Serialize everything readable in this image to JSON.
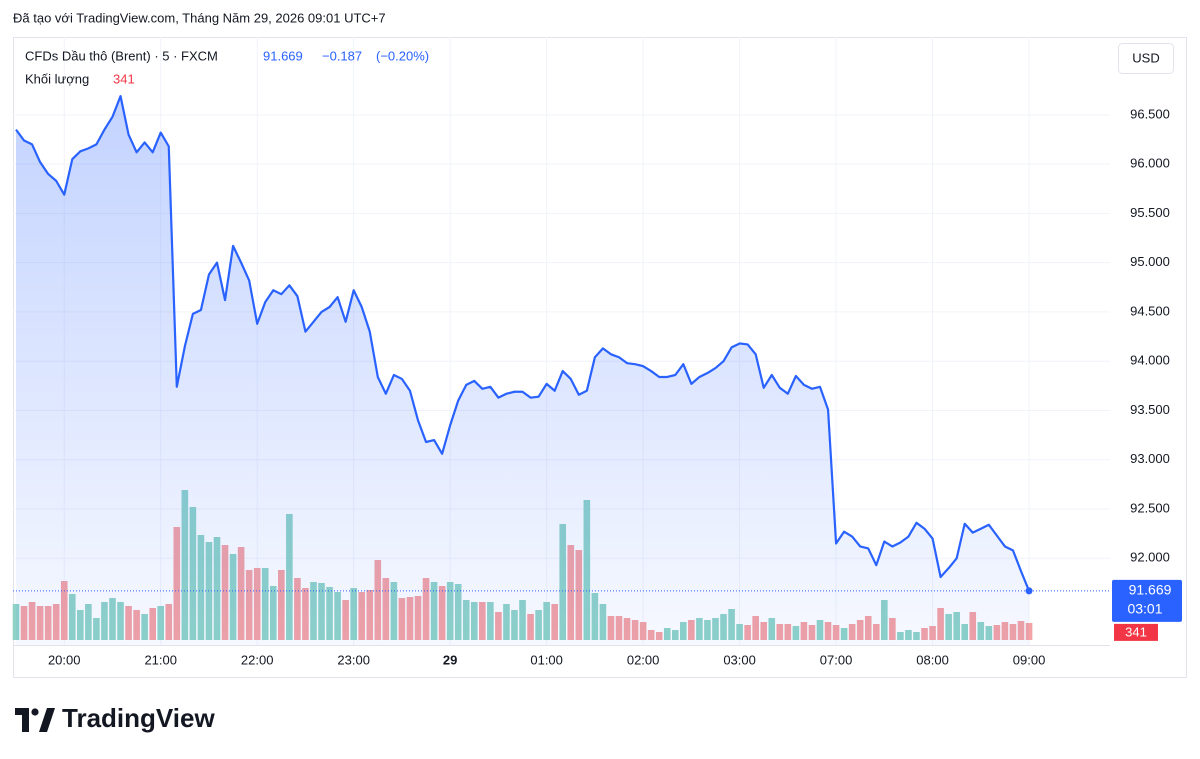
{
  "chart_data": {
    "type": "line",
    "credit": "Đã tạo với TradingView.com, Tháng Năm 29, 2026 09:01 UTC+7",
    "symbol": "CFDs Dầu thô (Brent) · 5 · FXCM",
    "change": "−0.187",
    "change_pct": "(−0.20%)",
    "volume_label": "Khối lượng",
    "currency": "USD",
    "countdown": "03:01",
    "brand": "TradingView",
    "color": "#2962ff",
    "grid": true,
    "ylim": [
      91.12,
      97.29
    ],
    "yticks": [
      {
        "value": 92,
        "label": "92.000"
      },
      {
        "value": 92.5,
        "label": "92.500"
      },
      {
        "value": 93,
        "label": "93.000"
      },
      {
        "value": 93.5,
        "label": "93.500"
      },
      {
        "value": 94,
        "label": "94.000"
      },
      {
        "value": 94.5,
        "label": "94.500"
      },
      {
        "value": 95,
        "label": "95.000"
      },
      {
        "value": 95.5,
        "label": "95.500"
      },
      {
        "value": 96,
        "label": "96.000"
      },
      {
        "value": 96.5,
        "label": "96.500"
      }
    ],
    "categories": [
      null,
      null,
      null,
      null,
      null,
      null,
      "20:00",
      null,
      null,
      null,
      null,
      null,
      null,
      null,
      null,
      null,
      null,
      null,
      "21:00",
      null,
      null,
      null,
      null,
      null,
      null,
      null,
      null,
      null,
      null,
      null,
      "22:00",
      null,
      null,
      null,
      null,
      null,
      null,
      null,
      null,
      null,
      null,
      null,
      "23:00",
      null,
      null,
      null,
      null,
      null,
      null,
      null,
      null,
      null,
      null,
      null,
      "29",
      null,
      null,
      null,
      null,
      null,
      null,
      null,
      null,
      null,
      null,
      null,
      "01:00",
      null,
      null,
      null,
      null,
      null,
      null,
      null,
      null,
      null,
      null,
      null,
      "02:00",
      null,
      null,
      null,
      null,
      null,
      null,
      null,
      null,
      null,
      null,
      null,
      "03:00",
      null,
      null,
      null,
      null,
      null,
      null,
      null,
      null,
      null,
      null,
      null,
      "07:00",
      null,
      null,
      null,
      null,
      null,
      null,
      null,
      null,
      null,
      null,
      null,
      "08:00",
      null,
      null,
      null,
      null,
      null,
      null,
      null,
      null,
      null,
      null,
      null,
      "09:00"
    ],
    "values": [
      96.35,
      96.24,
      96.2,
      96.02,
      95.9,
      95.83,
      95.69,
      96.05,
      96.13,
      96.16,
      96.2,
      96.35,
      96.48,
      96.69,
      96.3,
      96.12,
      96.22,
      96.12,
      96.32,
      96.18,
      93.74,
      94.15,
      94.48,
      94.52,
      94.88,
      95.0,
      94.62,
      95.17,
      95.0,
      94.82,
      94.38,
      94.6,
      94.72,
      94.68,
      94.77,
      94.66,
      94.3,
      94.4,
      94.5,
      94.55,
      94.65,
      94.4,
      94.72,
      94.55,
      94.3,
      93.84,
      93.67,
      93.86,
      93.82,
      93.7,
      93.4,
      93.18,
      93.2,
      93.06,
      93.35,
      93.6,
      93.76,
      93.8,
      93.72,
      93.74,
      93.63,
      93.67,
      93.69,
      93.69,
      93.63,
      93.64,
      93.77,
      93.7,
      93.9,
      93.82,
      93.66,
      93.7,
      94.04,
      94.13,
      94.07,
      94.04,
      93.98,
      93.97,
      93.95,
      93.9,
      93.84,
      93.84,
      93.86,
      93.97,
      93.77,
      93.84,
      93.88,
      93.93,
      94.0,
      94.14,
      94.18,
      94.17,
      94.07,
      93.73,
      93.86,
      93.73,
      93.67,
      93.85,
      93.76,
      93.72,
      93.74,
      93.51,
      92.15,
      92.27,
      92.22,
      92.12,
      92.1,
      91.93,
      92.17,
      92.12,
      92.16,
      92.22,
      92.36,
      92.3,
      92.2,
      91.81,
      91.9,
      92.0,
      92.35,
      92.26,
      92.3,
      92.34,
      92.23,
      92.12,
      92.08,
      91.87,
      91.669
    ],
    "volume": {
      "up_color": "#8fd3c8",
      "down_color": "#f4a2a4",
      "label_color": "#f23645",
      "values": [
        720,
        680,
        760,
        680,
        680,
        720,
        1180,
        920,
        600,
        720,
        440,
        760,
        840,
        760,
        680,
        600,
        520,
        640,
        680,
        720,
        2260,
        3000,
        2660,
        2100,
        1960,
        2060,
        1900,
        1720,
        1860,
        1400,
        1440,
        1440,
        1080,
        1400,
        2520,
        1240,
        1040,
        1160,
        1140,
        1060,
        960,
        800,
        1040,
        960,
        1000,
        1600,
        1240,
        1160,
        840,
        860,
        880,
        1240,
        1160,
        1080,
        1160,
        1120,
        800,
        760,
        760,
        760,
        560,
        720,
        600,
        800,
        520,
        600,
        760,
        720,
        2320,
        1900,
        1800,
        2800,
        940,
        720,
        480,
        480,
        440,
        400,
        360,
        200,
        160,
        240,
        200,
        360,
        400,
        440,
        400,
        440,
        520,
        620,
        320,
        300,
        480,
        360,
        440,
        320,
        320,
        280,
        360,
        300,
        400,
        360,
        300,
        240,
        320,
        400,
        480,
        320,
        800,
        440,
        160,
        200,
        160,
        240,
        280,
        640,
        520,
        560,
        320,
        560,
        360,
        280,
        300,
        360,
        320,
        380,
        341
      ]
    }
  }
}
